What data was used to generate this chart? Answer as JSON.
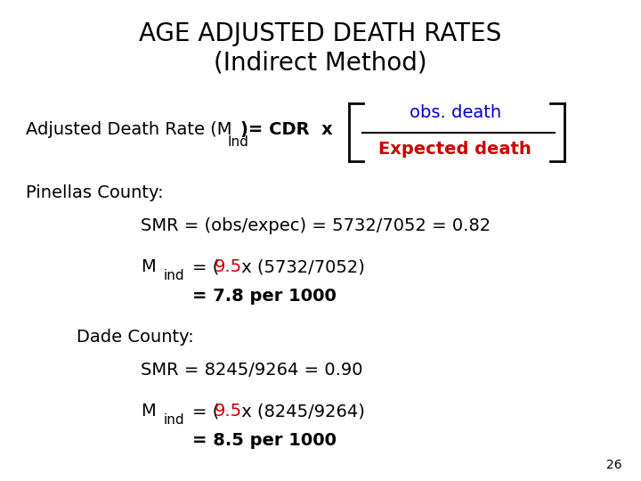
{
  "title_line1": "AGE ADJUSTED DEATH RATES",
  "title_line2": "(Indirect Method)",
  "title_fontsize": 20,
  "title_color": "#000000",
  "bg_color": "#ffffff",
  "formula_label": "Adjusted Death Rate (M",
  "formula_sub": "Ind",
  "formula_rest": ")= CDR  x",
  "obs_death_text": "obs. death",
  "obs_death_color": "#0000cc",
  "expected_death_text": "Expected death",
  "expected_death_color": "#cc0000",
  "pinellas_header": "Pinellas County:",
  "pinellas_smr": "SMR = (obs/expec) = 5732/7052 = 0.82",
  "pinellas_mind_label": "M",
  "pinellas_mind_sub": "ind",
  "pinellas_mind_eq1_prefix": "= (",
  "pinellas_mind_eq1_red": "9.5",
  "pinellas_mind_eq1_suffix": " x (5732/7052)",
  "pinellas_mind_eq2": "= 7.8 per 1000",
  "dade_header": "Dade County:",
  "dade_smr": "SMR = 8245/9264 = 0.90",
  "dade_mind_label": "M",
  "dade_mind_sub": "ind",
  "dade_mind_eq1_prefix": "= (",
  "dade_mind_eq1_red": "9.5",
  "dade_mind_eq1_suffix": " x (8245/9264)",
  "dade_mind_eq2": "= 8.5 per 1000",
  "page_number": "26",
  "red_color": "#cc0000",
  "black_color": "#000000",
  "body_fontsize": 14,
  "bold_fontsize": 14
}
